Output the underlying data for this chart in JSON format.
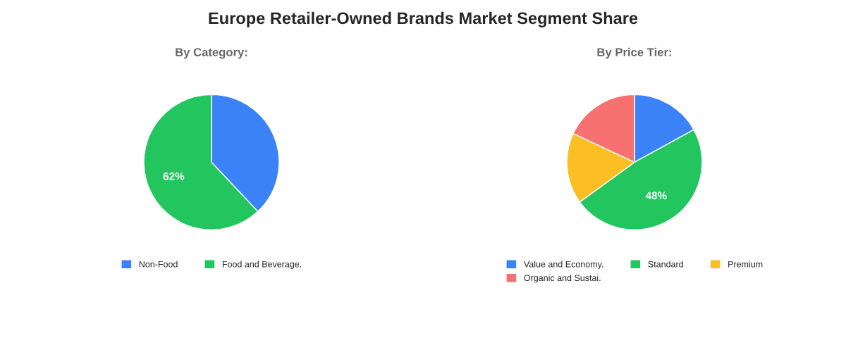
{
  "chart_data": [
    {
      "type": "pie",
      "title": "Europe Retailer-Owned Brands Market Segment Share",
      "subtitle": "By Category:",
      "categories": [
        "Non-Food",
        "Food and Beverage."
      ],
      "values": [
        38,
        62
      ],
      "colors": [
        "#3b82f6",
        "#22c55e"
      ],
      "value_labels": [
        null,
        "62%"
      ],
      "legend": "bottom"
    },
    {
      "type": "pie",
      "subtitle": "By Price Tier:",
      "categories": [
        "Value and Economy.",
        "Standard",
        "Premium",
        "Organic and Sustai."
      ],
      "values": [
        17,
        48,
        17,
        18
      ],
      "colors": [
        "#3b82f6",
        "#22c55e",
        "#fbbf24",
        "#f87171"
      ],
      "value_labels": [
        null,
        "48%",
        null,
        null
      ],
      "legend": "bottom"
    }
  ]
}
